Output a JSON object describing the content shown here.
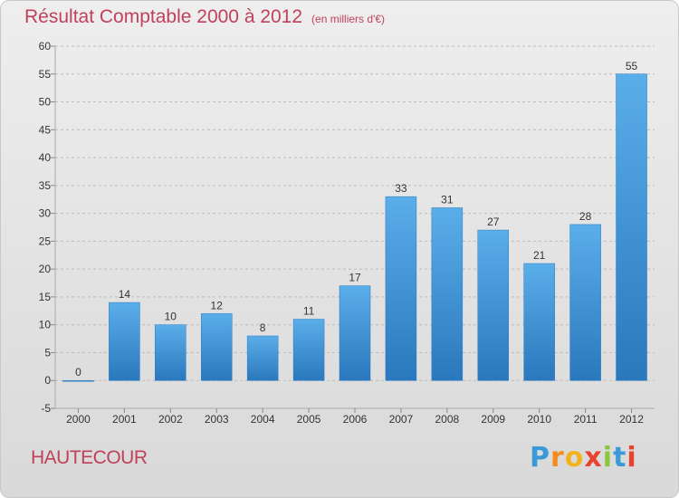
{
  "chart_data": {
    "type": "bar",
    "title": "Résultat Comptable 2000 à 2012",
    "subtitle": "(en milliers d'€)",
    "categories": [
      "2000",
      "2001",
      "2002",
      "2003",
      "2004",
      "2005",
      "2006",
      "2007",
      "2008",
      "2009",
      "2010",
      "2011",
      "2012"
    ],
    "values": [
      0,
      14,
      10,
      12,
      8,
      11,
      17,
      33,
      31,
      27,
      21,
      28,
      55
    ],
    "value_labels": [
      "0",
      "14",
      "10",
      "12",
      "8",
      "11",
      "17",
      "33",
      "31",
      "27",
      "21",
      "28",
      "55"
    ],
    "ylim": [
      -5,
      60
    ],
    "yticks": [
      -5,
      0,
      5,
      10,
      15,
      20,
      25,
      30,
      35,
      40,
      45,
      50,
      55,
      60
    ],
    "ytick_labels": [
      "-5",
      "0",
      "5",
      "10",
      "15",
      "20",
      "25",
      "30",
      "35",
      "40",
      "45",
      "50",
      "55",
      "60"
    ],
    "xlabel": "",
    "ylabel": "",
    "grid": "horizontal",
    "legend": "none",
    "bar_color": "#3b8fd6",
    "bar_color_light": "#5aaee9",
    "bar_color_dark": "#2a78bd"
  },
  "location": "HAUTECOUR",
  "brand": {
    "letters": [
      "P",
      "r",
      "o",
      "x",
      "i",
      "t",
      "i"
    ],
    "colors": [
      "#3a9ad9",
      "#f28c1e",
      "#f2b21e",
      "#e8432e",
      "#8cc63f",
      "#3a9ad9",
      "#e8432e"
    ]
  },
  "colors": {
    "title": "#c0415a",
    "grid": "#bcbcbc",
    "axis_text": "#333333"
  }
}
